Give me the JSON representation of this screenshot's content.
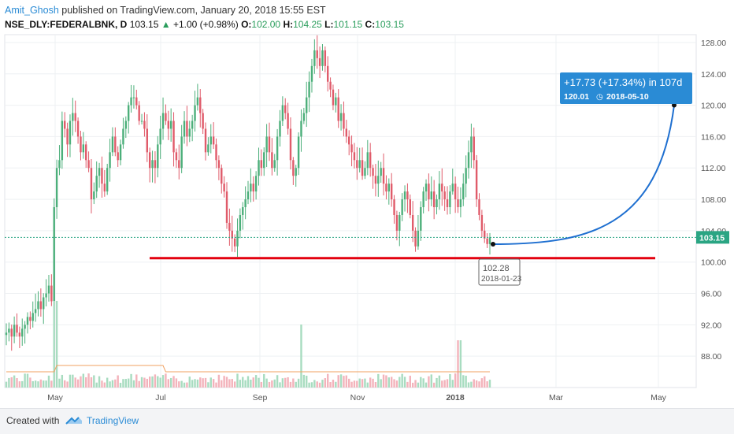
{
  "header": {
    "author": "Amit_Ghosh",
    "published": "published on TradingView.com, January 20, 2018 15:55 EST"
  },
  "symbol": {
    "name": "NSE_DLY:FEDERALBNK, D",
    "last": "103.15",
    "change": "+1.00 (+0.98%)",
    "open_label": "O:",
    "open": "102.00",
    "high_label": "H:",
    "high": "104.25",
    "low_label": "L:",
    "low": "101.15",
    "close_label": "C:",
    "close": "103.15"
  },
  "footer": {
    "created_with": "Created with",
    "brand": "TradingView"
  },
  "colors": {
    "up": "#4caf7a",
    "down": "#e05b6a",
    "support": "#e3000f",
    "projection": "#1e6fd0",
    "accent": "#2a8bd5",
    "volume_ma": "#f0a060"
  },
  "chart_data": {
    "type": "candlestick",
    "ylim": [
      84,
      129
    ],
    "yticks": [
      "128.00",
      "124.00",
      "120.00",
      "116.00",
      "112.00",
      "108.00",
      "104.00",
      "100.00",
      "96.00",
      "92.00",
      "88.00"
    ],
    "xticks": [
      "May",
      "Jul",
      "Sep",
      "Nov",
      "2018",
      "Mar",
      "May"
    ],
    "last_price_label": "103.15",
    "support_level": 100.5,
    "close_series": [
      91,
      91.5,
      90.5,
      92,
      91,
      90.5,
      91.5,
      92,
      93,
      92.5,
      93.5,
      94,
      95,
      94,
      95.5,
      96,
      97,
      95,
      107,
      112,
      113,
      118,
      117,
      115,
      118,
      119,
      118,
      116,
      114,
      115,
      113,
      112,
      108,
      109,
      111,
      112,
      110,
      109,
      112,
      114,
      116,
      114,
      113,
      115,
      117,
      118,
      120,
      121,
      121,
      120,
      118,
      118,
      117,
      114,
      112,
      113,
      112,
      115,
      117,
      119,
      118,
      117,
      118,
      114,
      113,
      112,
      116,
      118,
      116,
      117,
      118,
      120,
      121,
      119,
      117,
      114,
      115,
      116,
      115,
      113,
      112,
      110,
      109,
      105,
      104,
      103,
      102,
      104,
      106,
      107,
      108,
      109,
      110,
      109,
      111,
      113,
      112,
      114,
      116,
      114,
      112,
      113,
      116,
      118,
      120,
      119,
      117,
      113,
      111,
      112,
      116,
      118,
      119,
      121,
      123,
      125,
      127,
      126,
      125,
      127,
      125,
      123,
      122,
      120,
      121,
      118,
      119,
      117,
      116,
      115,
      114,
      113,
      112,
      113,
      111,
      112,
      114,
      112,
      111,
      110,
      111,
      112,
      110,
      109,
      110,
      108,
      106,
      104,
      106,
      108,
      109,
      108,
      106,
      104,
      102,
      104,
      107,
      109,
      110,
      108,
      109,
      107,
      108,
      110,
      109,
      108,
      107,
      109,
      110,
      108,
      107,
      108,
      110,
      112,
      114,
      116,
      113,
      108,
      106,
      104,
      103,
      102.3,
      103.15
    ],
    "projection": {
      "label": "+17.73 (+17.34%) in 107d",
      "sub_price": "120.01",
      "sub_date": "2018-05-10",
      "start": 102.28,
      "end": 120.01
    },
    "low_marker": {
      "price": "102.28",
      "date": "2018-01-23"
    }
  }
}
